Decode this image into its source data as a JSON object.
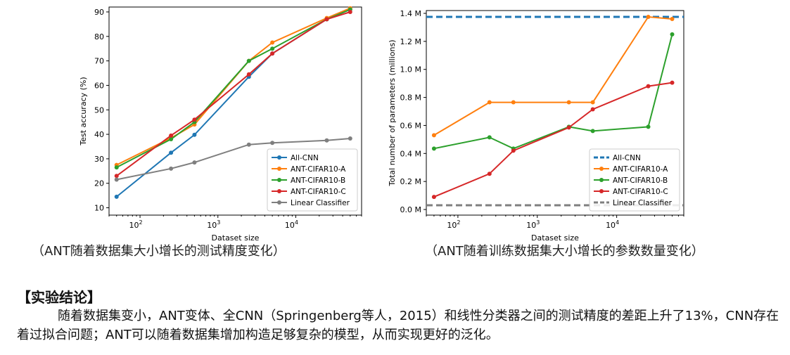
{
  "chart_data": [
    {
      "type": "line",
      "title": "",
      "xlabel": "Dataset size",
      "ylabel": "Test accuracy (%)",
      "xscale": "log",
      "xlim": [
        40,
        70000
      ],
      "ylim": [
        7,
        92
      ],
      "xticks": [
        {
          "v": 100,
          "base": "10",
          "exp": "2"
        },
        {
          "v": 1000,
          "base": "10",
          "exp": "3"
        },
        {
          "v": 10000,
          "base": "10",
          "exp": "4"
        }
      ],
      "yticks": [
        10,
        20,
        30,
        40,
        50,
        60,
        70,
        80,
        90
      ],
      "grid": false,
      "legend_position": "lower-right",
      "series": [
        {
          "name": "All-CNN",
          "color": "#1f77b4",
          "points": [
            [
              50,
              14.5
            ],
            [
              250,
              32.5
            ],
            [
              500,
              39.8
            ],
            [
              2500,
              63.5
            ],
            [
              5000,
              73
            ],
            [
              25000,
              87
            ],
            [
              50000,
              91
            ]
          ]
        },
        {
          "name": "ANT-CIFAR10-A",
          "color": "#ff7f0e",
          "points": [
            [
              50,
              27.5
            ],
            [
              250,
              38.5
            ],
            [
              500,
              44
            ],
            [
              2500,
              70
            ],
            [
              5000,
              77.5
            ],
            [
              25000,
              87.5
            ],
            [
              50000,
              91.5
            ]
          ]
        },
        {
          "name": "ANT-CIFAR10-B",
          "color": "#2ca02c",
          "points": [
            [
              50,
              26.5
            ],
            [
              250,
              38
            ],
            [
              500,
              45
            ],
            [
              2500,
              70
            ],
            [
              5000,
              75
            ],
            [
              25000,
              87
            ],
            [
              50000,
              91
            ]
          ]
        },
        {
          "name": "ANT-CIFAR10-C",
          "color": "#d62728",
          "points": [
            [
              50,
              23
            ],
            [
              250,
              39.5
            ],
            [
              500,
              46
            ],
            [
              2500,
              64.5
            ],
            [
              5000,
              73
            ],
            [
              25000,
              87
            ],
            [
              50000,
              90
            ]
          ]
        },
        {
          "name": "Linear Classifier",
          "color": "#7f7f7f",
          "points": [
            [
              50,
              21.5
            ],
            [
              250,
              26
            ],
            [
              500,
              28.5
            ],
            [
              2500,
              35.8
            ],
            [
              5000,
              36.5
            ],
            [
              25000,
              37.5
            ],
            [
              50000,
              38.3
            ]
          ]
        }
      ]
    },
    {
      "type": "line",
      "title": "",
      "xlabel": "Dataset size",
      "ylabel": "Total number of parameters (millions)",
      "xscale": "log",
      "xlim": [
        40,
        70000
      ],
      "ylim": [
        -0.04,
        1.42
      ],
      "xticks": [
        {
          "v": 100,
          "base": "10",
          "exp": "2"
        },
        {
          "v": 1000,
          "base": "10",
          "exp": "3"
        },
        {
          "v": 10000,
          "base": "10",
          "exp": "4"
        }
      ],
      "yticks": [
        {
          "v": 0.0,
          "label": "0.0 M"
        },
        {
          "v": 0.2,
          "label": "0.2 M"
        },
        {
          "v": 0.4,
          "label": "0.4 M"
        },
        {
          "v": 0.6,
          "label": "0.6 M"
        },
        {
          "v": 0.8,
          "label": "0.8 M"
        },
        {
          "v": 1.0,
          "label": "1.0 M"
        },
        {
          "v": 1.2,
          "label": "1.2 M"
        },
        {
          "v": 1.4,
          "label": "1.4 M"
        }
      ],
      "grid": false,
      "legend_position": "lower-right",
      "series": [
        {
          "name": "All-CNN",
          "color": "#1f77b4",
          "dashed": true,
          "hline": 1.375
        },
        {
          "name": "ANT-CIFAR10-A",
          "color": "#ff7f0e",
          "points": [
            [
              50,
              0.53
            ],
            [
              250,
              0.765
            ],
            [
              500,
              0.765
            ],
            [
              2500,
              0.765
            ],
            [
              5000,
              0.765
            ],
            [
              25000,
              1.375
            ],
            [
              50000,
              1.36
            ]
          ]
        },
        {
          "name": "ANT-CIFAR10-B",
          "color": "#2ca02c",
          "points": [
            [
              50,
              0.435
            ],
            [
              250,
              0.515
            ],
            [
              500,
              0.435
            ],
            [
              2500,
              0.59
            ],
            [
              5000,
              0.56
            ],
            [
              25000,
              0.59
            ],
            [
              50000,
              1.25
            ]
          ]
        },
        {
          "name": "ANT-CIFAR10-C",
          "color": "#d62728",
          "points": [
            [
              50,
              0.09
            ],
            [
              250,
              0.255
            ],
            [
              500,
              0.42
            ],
            [
              2500,
              0.585
            ],
            [
              5000,
              0.715
            ],
            [
              25000,
              0.88
            ],
            [
              50000,
              0.905
            ]
          ]
        },
        {
          "name": "Linear Classifier",
          "color": "#7f7f7f",
          "dashed": true,
          "hline": 0.03
        }
      ]
    }
  ],
  "captions": {
    "left": "（ANT随着数据集大小增长的测试精度变化）",
    "right": "（ANT随着训练数据集大小增长的参数数量变化）"
  },
  "conclusion": {
    "title": "【实验结论】",
    "body": "随着数据集变小，ANT变体、全CNN（Springenberg等人，2015）和线性分类器之间的测试精度的差距上升了13%，CNN存在着过拟合问题；ANT可以随着数据集增加构造足够复杂的模型，从而实现更好的泛化。"
  }
}
